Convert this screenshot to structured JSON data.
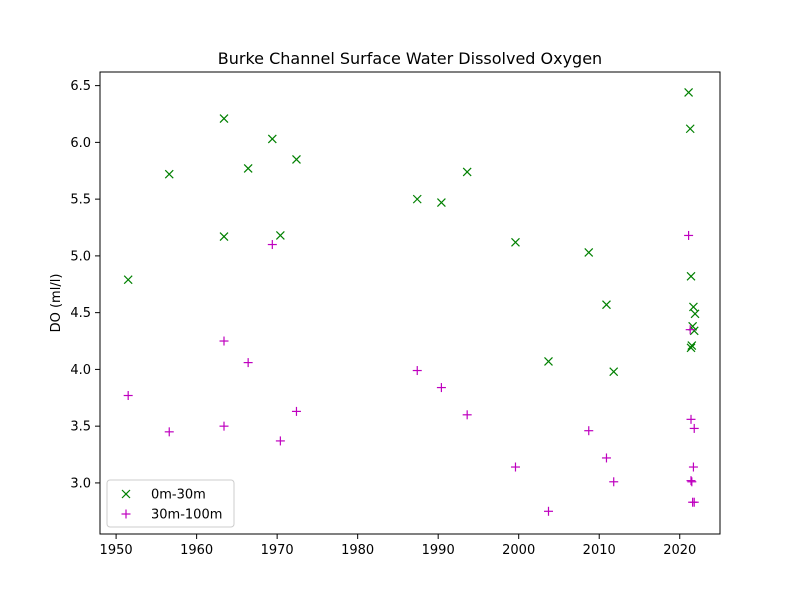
{
  "chart_data": {
    "type": "scatter",
    "title": "Burke Channel Surface Water Dissolved Oxygen",
    "xlabel": "",
    "ylabel": "DO (ml/l)",
    "xlim": [
      1948,
      2025
    ],
    "ylim": [
      2.55,
      6.62
    ],
    "xticks": [
      1950,
      1960,
      1970,
      1980,
      1990,
      2000,
      2010,
      2020
    ],
    "yticks": [
      3.0,
      3.5,
      4.0,
      4.5,
      5.0,
      5.5,
      6.0,
      6.5
    ],
    "ytick_labels": [
      "3.0",
      "3.5",
      "4.0",
      "4.5",
      "5.0",
      "5.5",
      "6.0",
      "6.5"
    ],
    "grid": false,
    "legend_position": "lower-left",
    "series": [
      {
        "name": "0m-30m",
        "marker": "x",
        "color": "#008000",
        "points": [
          [
            1951.5,
            4.79
          ],
          [
            1956.6,
            5.72
          ],
          [
            1963.4,
            6.21
          ],
          [
            1963.4,
            5.17
          ],
          [
            1966.4,
            5.77
          ],
          [
            1969.4,
            6.03
          ],
          [
            1970.4,
            5.18
          ],
          [
            1972.4,
            5.85
          ],
          [
            1987.4,
            5.5
          ],
          [
            1990.4,
            5.47
          ],
          [
            1993.6,
            5.74
          ],
          [
            1999.6,
            5.12
          ],
          [
            2003.7,
            4.07
          ],
          [
            2008.7,
            5.03
          ],
          [
            2010.9,
            4.57
          ],
          [
            2011.8,
            3.98
          ],
          [
            2021.1,
            6.44
          ],
          [
            2021.3,
            6.12
          ],
          [
            2021.4,
            4.82
          ],
          [
            2021.7,
            4.55
          ],
          [
            2021.9,
            4.49
          ],
          [
            2021.6,
            4.38
          ],
          [
            2021.8,
            4.34
          ],
          [
            2021.5,
            4.21
          ],
          [
            2021.4,
            4.19
          ]
        ]
      },
      {
        "name": "30m-100m",
        "marker": "+",
        "color": "#bf00bf",
        "points": [
          [
            1951.5,
            3.77
          ],
          [
            1956.6,
            3.45
          ],
          [
            1963.4,
            4.25
          ],
          [
            1963.4,
            3.5
          ],
          [
            1966.4,
            4.06
          ],
          [
            1969.4,
            5.1
          ],
          [
            1970.4,
            3.37
          ],
          [
            1972.4,
            3.63
          ],
          [
            1987.4,
            3.99
          ],
          [
            1990.4,
            3.84
          ],
          [
            1993.6,
            3.6
          ],
          [
            1999.6,
            3.14
          ],
          [
            2003.7,
            2.75
          ],
          [
            2008.7,
            3.46
          ],
          [
            2010.9,
            3.22
          ],
          [
            2011.8,
            3.01
          ],
          [
            2021.1,
            5.18
          ],
          [
            2021.3,
            4.35
          ],
          [
            2021.4,
            3.56
          ],
          [
            2021.8,
            3.48
          ],
          [
            2021.7,
            3.14
          ],
          [
            2021.4,
            3.02
          ],
          [
            2021.5,
            3.01
          ],
          [
            2021.6,
            2.83
          ],
          [
            2021.8,
            2.83
          ]
        ]
      }
    ]
  }
}
